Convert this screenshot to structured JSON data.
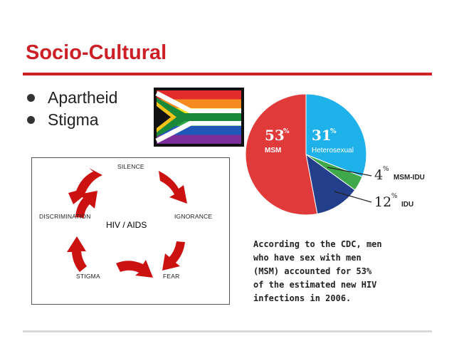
{
  "slide": {
    "title": "Socio-Cultural",
    "bullets": [
      "Apartheid",
      "Stigma"
    ]
  },
  "colors": {
    "accent": "#cc1f26",
    "rule": "#d9d9d9"
  },
  "cycle": {
    "center": "HIV / AIDS",
    "labels": [
      "SILENCE",
      "IGNORANCE",
      "FEAR",
      "STIGMA",
      "DISCRIMINATION"
    ]
  },
  "pie": {
    "slices": [
      {
        "pct": "53",
        "label": "MSM",
        "color": "#e03a3a"
      },
      {
        "pct": "31",
        "label": "Heterosexual",
        "color": "#1fb1ea"
      },
      {
        "pct": "4",
        "label": "MSM-IDU",
        "color": "#3fa84a"
      },
      {
        "pct": "12",
        "label": "IDU",
        "color": "#233e8b"
      }
    ],
    "percent_sign": "%"
  },
  "chart_data": {
    "type": "pie",
    "categories": [
      "MSM",
      "Heterosexual",
      "MSM-IDU",
      "IDU"
    ],
    "values": [
      53,
      31,
      4,
      12
    ]
  },
  "caption": "According to the CDC, men\nwho have sex with men\n(MSM) accounted for 53%\nof the estimated new HIV\ninfections in 2006."
}
